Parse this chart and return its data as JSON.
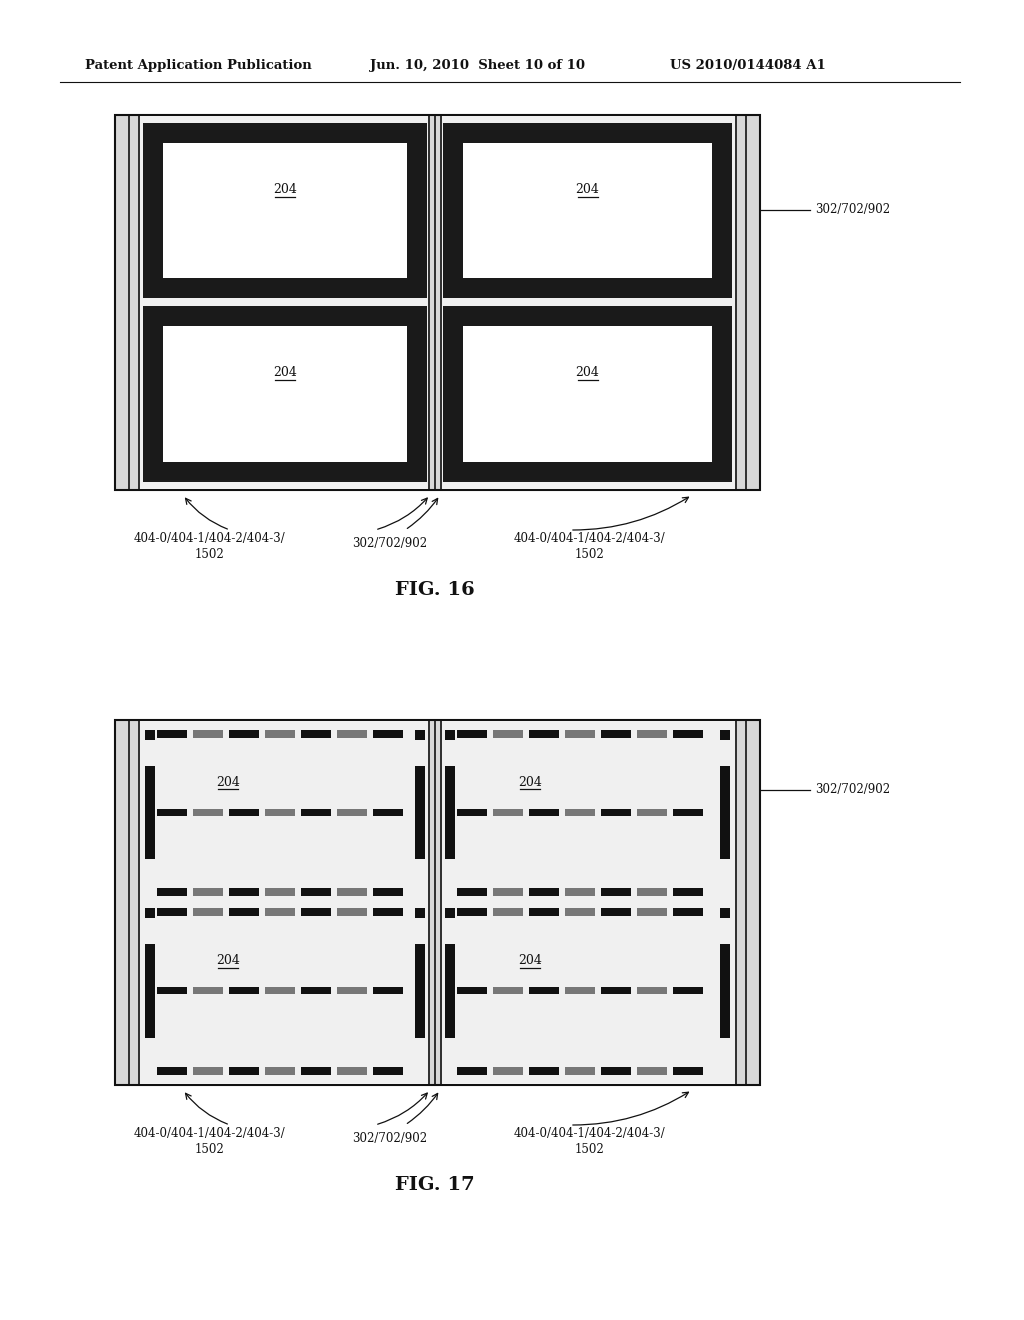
{
  "header_left": "Patent Application Publication",
  "header_center": "Jun. 10, 2010  Sheet 10 of 10",
  "header_right": "US 2010/0144084 A1",
  "fig16_title": "FIG. 16",
  "fig17_title": "FIG. 17",
  "label_204": "204",
  "label_302": "302/702/902",
  "label_404_line1": "404-0/404-1/404-2/404-3/",
  "label_404_line2": "1502",
  "bg_color": "#ffffff",
  "dark_color": "#1a1a1a",
  "gray_color": "#888888",
  "light_gray": "#cccccc",
  "dark_gray": "#555555"
}
